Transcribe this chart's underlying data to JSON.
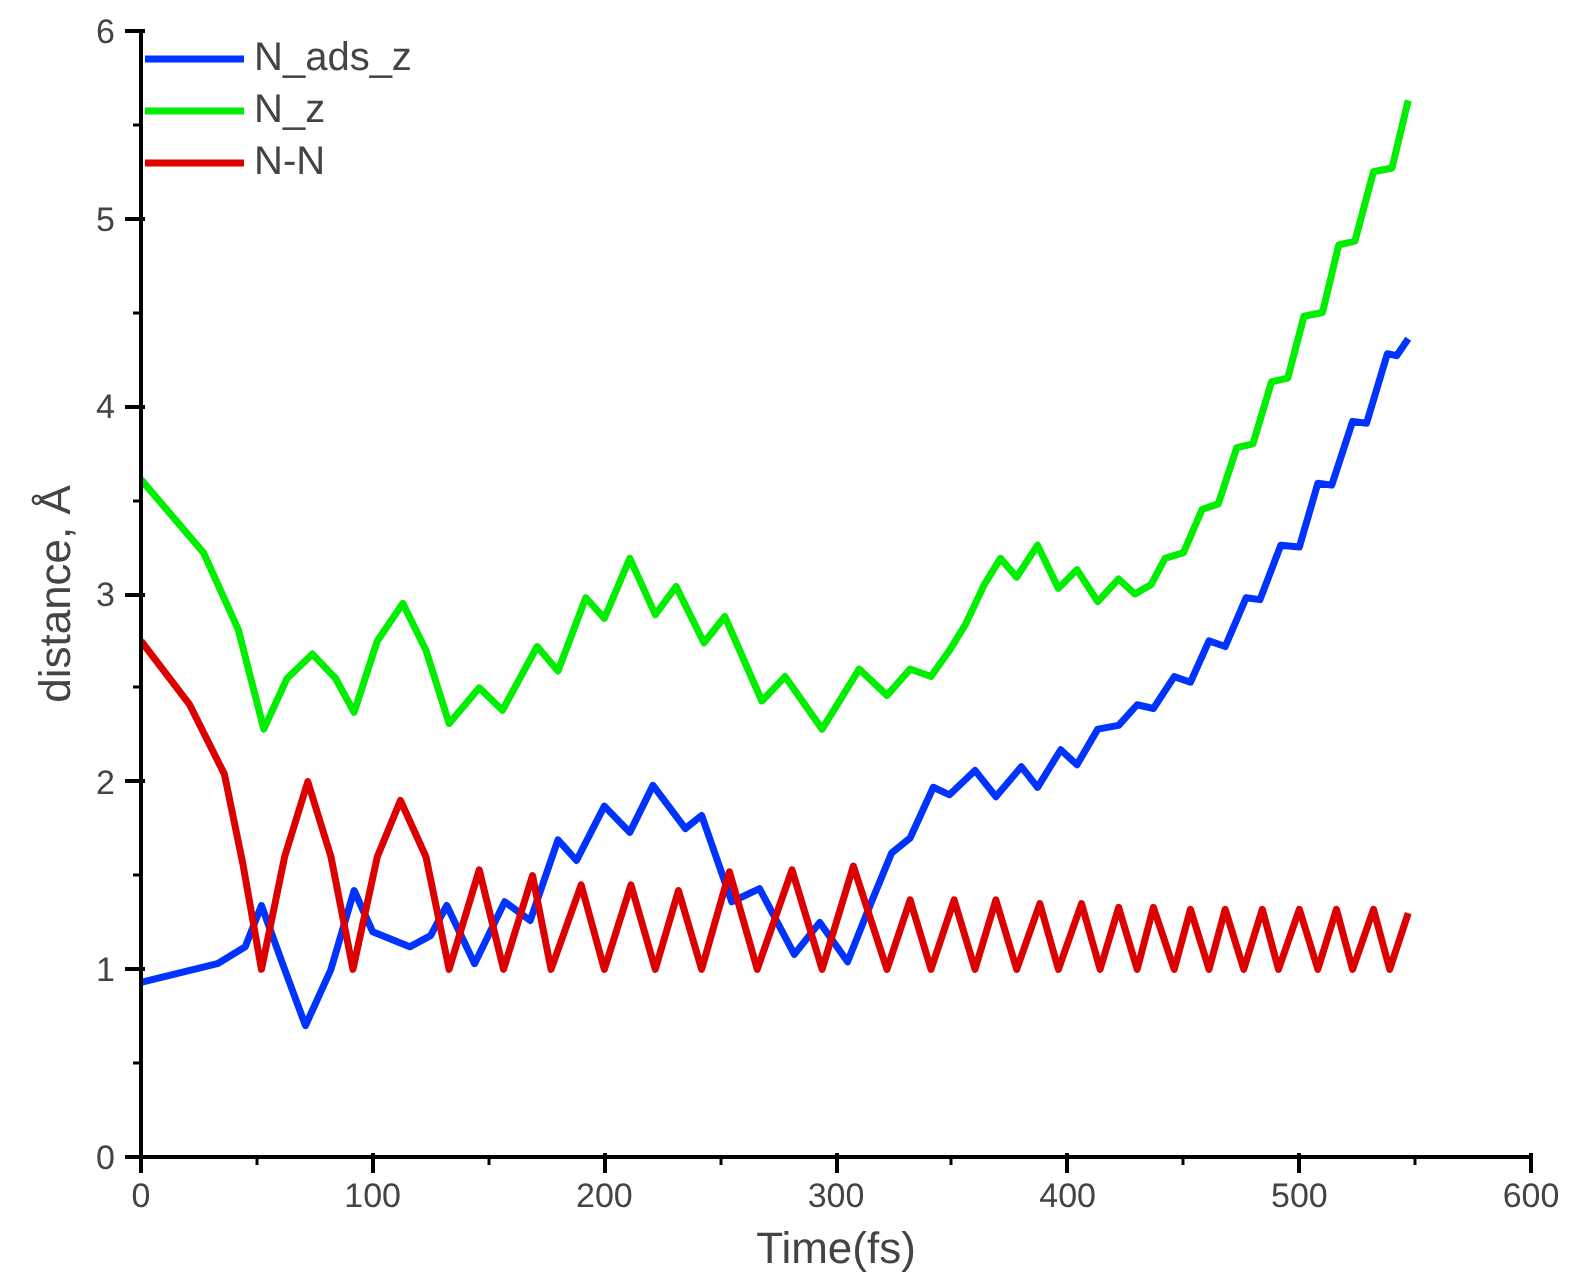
{
  "chart_data": {
    "type": "line",
    "xlabel": "Time(fs)",
    "ylabel": "distance, Å",
    "xlim": [
      0,
      600
    ],
    "ylim": [
      0,
      6
    ],
    "xticks": [
      0,
      100,
      200,
      300,
      400,
      500,
      600
    ],
    "yticks": [
      0,
      1,
      2,
      3,
      4,
      5,
      6
    ],
    "grid": false,
    "legend": "top left",
    "line_style": "solid",
    "marker": "none",
    "series": [
      {
        "name": "N_ads_z",
        "color": "#0033ff",
        "x": [
          0,
          33,
          45,
          52,
          62,
          71,
          82,
          92,
          100,
          116,
          125,
          132,
          144,
          157,
          168,
          180,
          188,
          200,
          211,
          221,
          235,
          242,
          255,
          267,
          282,
          293,
          305,
          315,
          324,
          332,
          342,
          349,
          360,
          369,
          380,
          387,
          397,
          404,
          413,
          422,
          430,
          437,
          446,
          453,
          461,
          468,
          477,
          483,
          492,
          500,
          508,
          514,
          523,
          529,
          538,
          542,
          547
        ],
        "values": [
          0.93,
          1.03,
          1.12,
          1.34,
          1.0,
          0.7,
          1.0,
          1.42,
          1.2,
          1.12,
          1.18,
          1.34,
          1.03,
          1.36,
          1.26,
          1.69,
          1.58,
          1.87,
          1.73,
          1.98,
          1.75,
          1.82,
          1.36,
          1.43,
          1.08,
          1.25,
          1.04,
          1.35,
          1.62,
          1.7,
          1.97,
          1.93,
          2.06,
          1.92,
          2.08,
          1.97,
          2.17,
          2.09,
          2.28,
          2.3,
          2.41,
          2.39,
          2.56,
          2.53,
          2.75,
          2.72,
          2.98,
          2.97,
          3.26,
          3.25,
          3.59,
          3.58,
          3.92,
          3.91,
          4.28,
          4.27,
          4.36
        ]
      },
      {
        "name": "N_z",
        "color": "#00ee00",
        "x": [
          0,
          27,
          42,
          53,
          63,
          74,
          84,
          92,
          102,
          113,
          123,
          133,
          146,
          156,
          171,
          180,
          192,
          200,
          211,
          222,
          231,
          243,
          252,
          268,
          278,
          294,
          310,
          322,
          332,
          341,
          349,
          356,
          364,
          371,
          378,
          387,
          396,
          404,
          413,
          422,
          429,
          436,
          442,
          450,
          458,
          465,
          473,
          480,
          488,
          495,
          502,
          510,
          517,
          524,
          532,
          540,
          547
        ],
        "values": [
          3.61,
          3.22,
          2.81,
          2.28,
          2.55,
          2.68,
          2.55,
          2.37,
          2.75,
          2.95,
          2.7,
          2.31,
          2.5,
          2.38,
          2.72,
          2.59,
          2.98,
          2.87,
          3.19,
          2.89,
          3.04,
          2.74,
          2.88,
          2.43,
          2.56,
          2.28,
          2.6,
          2.46,
          2.6,
          2.56,
          2.7,
          2.84,
          3.05,
          3.19,
          3.09,
          3.26,
          3.03,
          3.13,
          2.96,
          3.08,
          3.0,
          3.05,
          3.19,
          3.22,
          3.45,
          3.48,
          3.78,
          3.8,
          4.13,
          4.15,
          4.48,
          4.5,
          4.86,
          4.88,
          5.25,
          5.27,
          5.63
        ]
      },
      {
        "name": "N-N",
        "color": "#dd0000",
        "x": [
          0,
          21,
          36,
          44,
          52,
          62,
          72,
          82,
          91.5,
          102,
          112,
          123,
          133,
          146,
          156.5,
          169,
          177,
          190,
          200,
          211.5,
          222,
          232,
          242,
          254,
          266,
          281,
          294,
          307.5,
          322,
          332,
          341,
          351,
          360,
          369,
          378,
          388,
          396,
          406,
          414,
          422,
          430,
          437,
          446,
          453,
          461,
          468,
          476,
          484,
          491,
          500,
          508,
          516,
          523,
          532,
          539,
          547
        ],
        "values": [
          2.75,
          2.41,
          2.04,
          1.56,
          1.0,
          1.6,
          2.0,
          1.6,
          1.0,
          1.6,
          1.9,
          1.6,
          1.0,
          1.53,
          1.0,
          1.5,
          1.0,
          1.45,
          1.0,
          1.45,
          1.0,
          1.42,
          1.0,
          1.52,
          1.0,
          1.53,
          1.0,
          1.55,
          1.0,
          1.37,
          1.0,
          1.37,
          1.0,
          1.37,
          1.0,
          1.35,
          1.0,
          1.35,
          1.0,
          1.33,
          1.0,
          1.33,
          1.0,
          1.32,
          1.0,
          1.32,
          1.0,
          1.32,
          1.0,
          1.32,
          1.0,
          1.32,
          1.0,
          1.32,
          1.0,
          1.3
        ]
      }
    ]
  }
}
